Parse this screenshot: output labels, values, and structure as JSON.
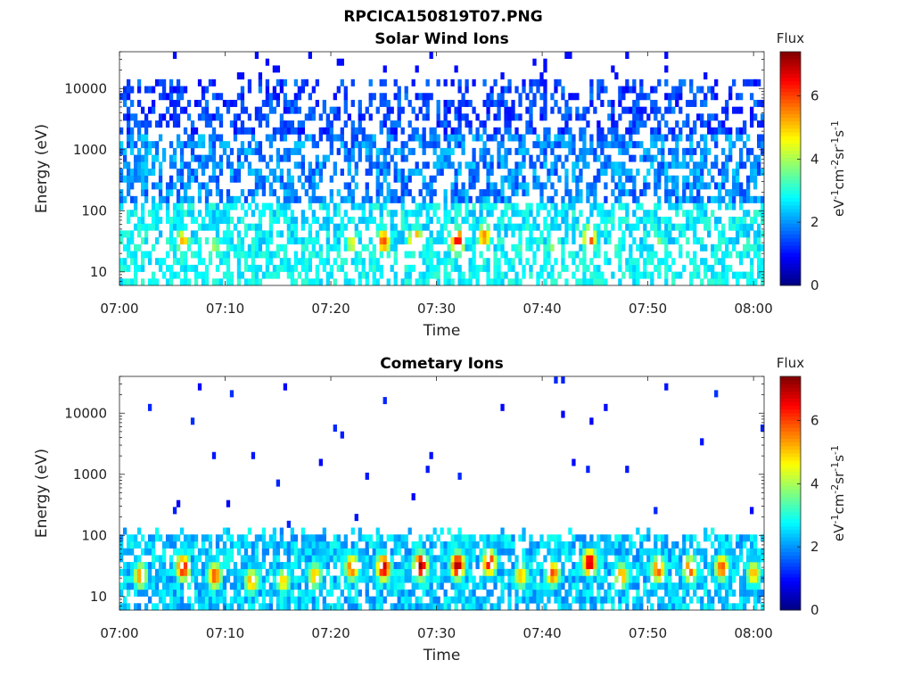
{
  "figure_title": "RPCICA150819T07.PNG",
  "chart_data": [
    {
      "type": "heatmap",
      "title": "Solar Wind Ions",
      "xlabel": "Time",
      "ylabel": "Energy (eV)",
      "x_ticks": [
        "07:00",
        "07:10",
        "07:20",
        "07:30",
        "07:40",
        "07:50",
        "08:00"
      ],
      "x_range": [
        "07:00",
        "08:01"
      ],
      "y_scale": "log",
      "y_ticks": [
        10,
        100,
        1000,
        10000
      ],
      "y_tick_labels": [
        "10",
        "100",
        "1000",
        "10000"
      ],
      "ylim": [
        6,
        40000
      ],
      "colorbar": {
        "label": "Flux",
        "unit": "eV-1cm-2sr-1s-1",
        "range": [
          0,
          7.4
        ],
        "ticks": [
          "0",
          "2",
          "4",
          "6"
        ],
        "colormap": "jet"
      },
      "background_level": 2,
      "hotspots": [
        {
          "time": "07:02",
          "energy": 30,
          "flux": 3.5
        },
        {
          "time": "07:06",
          "energy": 32,
          "flux": 5.2
        },
        {
          "time": "07:09",
          "energy": 26,
          "flux": 4.0
        },
        {
          "time": "07:15",
          "energy": 28,
          "flux": 3.2
        },
        {
          "time": "07:18",
          "energy": 22,
          "flux": 3.2
        },
        {
          "time": "07:22",
          "energy": 30,
          "flux": 4.5
        },
        {
          "time": "07:25",
          "energy": 32,
          "flux": 6.0
        },
        {
          "time": "07:28",
          "energy": 32,
          "flux": 6.2
        },
        {
          "time": "07:32",
          "energy": 32,
          "flux": 6.6
        },
        {
          "time": "07:34.5",
          "energy": 38,
          "flux": 5.6
        },
        {
          "time": "07:38",
          "energy": 24,
          "flux": 3.4
        },
        {
          "time": "07:41",
          "energy": 28,
          "flux": 4.0
        },
        {
          "time": "07:44.5",
          "energy": 36,
          "flux": 6.2
        },
        {
          "time": "07:47",
          "energy": 24,
          "flux": 3.4
        },
        {
          "time": "07:51",
          "energy": 28,
          "flux": 4.0
        },
        {
          "time": "07:54",
          "energy": 28,
          "flux": 3.6
        },
        {
          "time": "07:57",
          "energy": 28,
          "flux": 3.4
        },
        {
          "time": "08:00",
          "energy": 24,
          "flux": 3.2
        }
      ]
    },
    {
      "type": "heatmap",
      "title": "Cometary Ions",
      "xlabel": "Time",
      "ylabel": "Energy (eV)",
      "x_ticks": [
        "07:00",
        "07:10",
        "07:20",
        "07:30",
        "07:40",
        "07:50",
        "08:00"
      ],
      "x_range": [
        "07:00",
        "08:01"
      ],
      "y_scale": "log",
      "y_ticks": [
        10,
        100,
        1000,
        10000
      ],
      "y_tick_labels": [
        "10",
        "100",
        "1000",
        "10000"
      ],
      "ylim": [
        6,
        40000
      ],
      "colorbar": {
        "label": "Flux",
        "unit": "eV-1cm-2sr-1s-1",
        "range": [
          0,
          7.4
        ],
        "ticks": [
          "0",
          "2",
          "4",
          "6"
        ],
        "colormap": "jet"
      },
      "background_level": 0.8,
      "hotspots": [
        {
          "time": "07:02",
          "energy": 22,
          "flux": 5.6
        },
        {
          "time": "07:06",
          "energy": 30,
          "flux": 6.6
        },
        {
          "time": "07:09",
          "energy": 22,
          "flux": 6.0
        },
        {
          "time": "07:12.5",
          "energy": 18,
          "flux": 5.4
        },
        {
          "time": "07:15.5",
          "energy": 18,
          "flux": 5.0
        },
        {
          "time": "07:18.5",
          "energy": 22,
          "flux": 5.2
        },
        {
          "time": "07:22",
          "energy": 30,
          "flux": 6.0
        },
        {
          "time": "07:25",
          "energy": 30,
          "flux": 7.0
        },
        {
          "time": "07:28.5",
          "energy": 32,
          "flux": 7.2
        },
        {
          "time": "07:32",
          "energy": 32,
          "flux": 7.2
        },
        {
          "time": "07:35",
          "energy": 36,
          "flux": 6.6
        },
        {
          "time": "07:38",
          "energy": 22,
          "flux": 5.2
        },
        {
          "time": "07:41",
          "energy": 24,
          "flux": 6.0
        },
        {
          "time": "07:44.5",
          "energy": 36,
          "flux": 7.0
        },
        {
          "time": "07:47.5",
          "energy": 22,
          "flux": 5.4
        },
        {
          "time": "07:51",
          "energy": 28,
          "flux": 6.0
        },
        {
          "time": "07:54",
          "energy": 28,
          "flux": 6.0
        },
        {
          "time": "07:57",
          "energy": 30,
          "flux": 6.0
        },
        {
          "time": "08:00",
          "energy": 24,
          "flux": 5.2
        }
      ]
    }
  ]
}
